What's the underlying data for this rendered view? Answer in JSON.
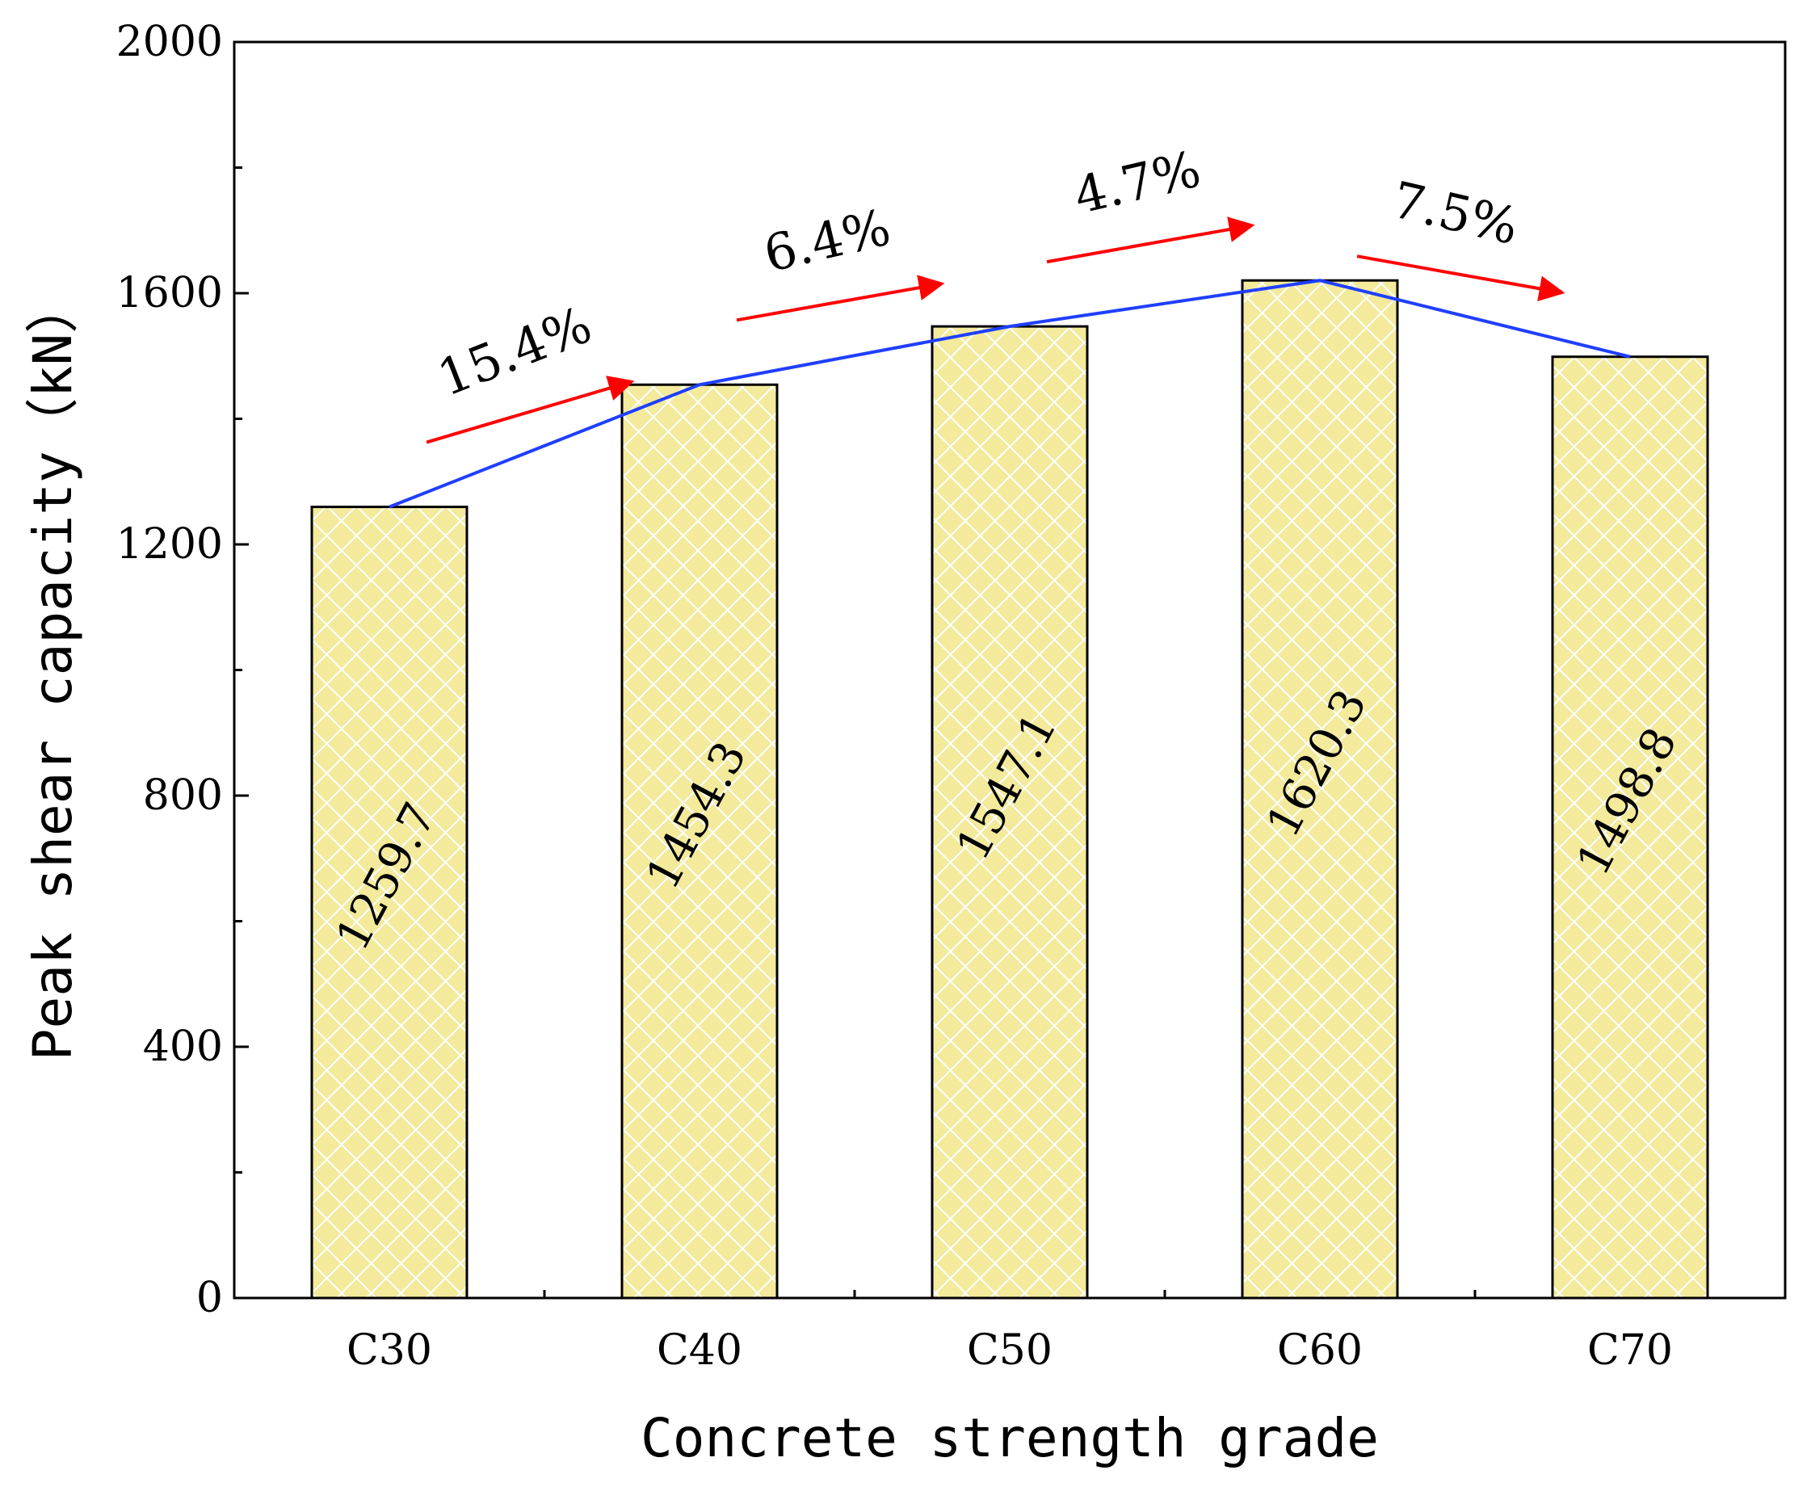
{
  "chart_data": {
    "type": "bar",
    "categories": [
      "C30",
      "C40",
      "C50",
      "C60",
      "C70"
    ],
    "values": [
      1259.7,
      1454.3,
      1547.1,
      1620.3,
      1498.8
    ],
    "value_labels": [
      "1259.7",
      "1454.3",
      "1547.1",
      "1620.3",
      "1498.8"
    ],
    "xlabel": "Concrete strength grade",
    "ylabel": "Peak shear capacity（kN）",
    "ylim": [
      0,
      2000
    ],
    "yticks": [
      0,
      400,
      800,
      1200,
      1600,
      2000
    ],
    "ytick_labels": [
      "0",
      "400",
      "800",
      "1200",
      "1600",
      "2000"
    ],
    "grid": false,
    "trend_line": {
      "values": [
        1259.7,
        1454.3,
        1547.1,
        1620.3,
        1498.8
      ],
      "color": "#1f3fff"
    },
    "changes": [
      {
        "from": "C30",
        "to": "C40",
        "label": "15.4%",
        "direction": "up"
      },
      {
        "from": "C40",
        "to": "C50",
        "label": "6.4%",
        "direction": "up"
      },
      {
        "from": "C50",
        "to": "C60",
        "label": "4.7%",
        "direction": "up"
      },
      {
        "from": "C60",
        "to": "C70",
        "label": "7.5%",
        "direction": "down"
      }
    ],
    "colors": {
      "bar_fill": "#f3ea9c",
      "bar_hatch": "#ffffff",
      "bar_edge": "#000000",
      "trend": "#1f3fff",
      "arrow": "#ff0000"
    }
  }
}
